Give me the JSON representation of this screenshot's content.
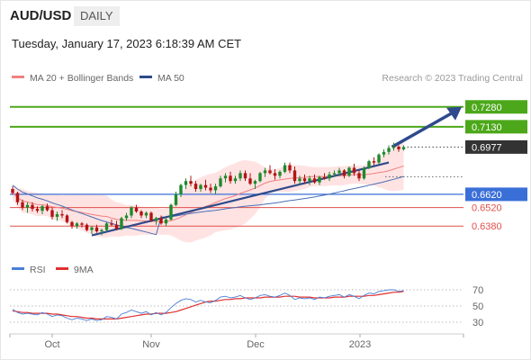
{
  "header": {
    "symbol": "AUD/USD",
    "timeframe": "DAILY",
    "timestamp": "Tuesday, January 17, 2023 6:18:39 AM CET"
  },
  "legend": {
    "ma20_bb": "MA 20 + Bollinger Bands",
    "ma50": "MA 50",
    "credit": "Research © 2023 Trading Central",
    "rsi": "RSI",
    "ma9": "9MA"
  },
  "colors": {
    "candle_up": "#1e8a2c",
    "candle_down": "#b01414",
    "bollinger_fill": "#ffd9d9",
    "ma20": "#f08080",
    "ma50": "#4a6fb5",
    "trendline": "#2e4a8c",
    "resistance": "#4ca81a",
    "support": "#e0504a",
    "pivot": "#3a6fd8",
    "last_price": "#333333",
    "rsi": "#4a7fd6",
    "rsi_ma": "#e03030"
  },
  "chart_data": [
    {
      "type": "candlestick",
      "title": "AUD/USD",
      "x_ticks": [
        "Oct",
        "Nov",
        "Dec",
        "2023"
      ],
      "ylim": [
        0.6215,
        0.736
      ],
      "levels": [
        {
          "value": 0.728,
          "label": "0.7280",
          "kind": "resistance"
        },
        {
          "value": 0.713,
          "label": "0.7130",
          "kind": "resistance"
        },
        {
          "value": 0.6977,
          "label": "0.6977",
          "kind": "last"
        },
        {
          "value": 0.662,
          "label": "0.6620",
          "kind": "pivot"
        },
        {
          "value": 0.652,
          "label": "0.6520",
          "kind": "support"
        },
        {
          "value": 0.638,
          "label": "0.6380",
          "kind": "support"
        }
      ],
      "candles_ohlc": [
        [
          0.666,
          0.668,
          0.662,
          0.663
        ],
        [
          0.663,
          0.664,
          0.654,
          0.656
        ],
        [
          0.656,
          0.658,
          0.65,
          0.652
        ],
        [
          0.652,
          0.656,
          0.648,
          0.654
        ],
        [
          0.654,
          0.656,
          0.649,
          0.651
        ],
        [
          0.651,
          0.653,
          0.648,
          0.6495
        ],
        [
          0.6495,
          0.654,
          0.647,
          0.653
        ],
        [
          0.653,
          0.655,
          0.649,
          0.65
        ],
        [
          0.65,
          0.652,
          0.643,
          0.645
        ],
        [
          0.645,
          0.649,
          0.642,
          0.647
        ],
        [
          0.647,
          0.65,
          0.644,
          0.646
        ],
        [
          0.646,
          0.647,
          0.64,
          0.641
        ],
        [
          0.641,
          0.642,
          0.636,
          0.638
        ],
        [
          0.638,
          0.641,
          0.636,
          0.64
        ],
        [
          0.64,
          0.641,
          0.637,
          0.639
        ],
        [
          0.639,
          0.64,
          0.634,
          0.635
        ],
        [
          0.635,
          0.638,
          0.632,
          0.637
        ],
        [
          0.637,
          0.639,
          0.633,
          0.634
        ],
        [
          0.634,
          0.636,
          0.631,
          0.635
        ],
        [
          0.635,
          0.641,
          0.634,
          0.64
        ],
        [
          0.64,
          0.643,
          0.638,
          0.639
        ],
        [
          0.639,
          0.642,
          0.635,
          0.636
        ],
        [
          0.636,
          0.645,
          0.635,
          0.644
        ],
        [
          0.644,
          0.648,
          0.642,
          0.646
        ],
        [
          0.646,
          0.653,
          0.644,
          0.652
        ],
        [
          0.652,
          0.654,
          0.648,
          0.649
        ],
        [
          0.649,
          0.65,
          0.644,
          0.646
        ],
        [
          0.646,
          0.649,
          0.644,
          0.648
        ],
        [
          0.648,
          0.649,
          0.641,
          0.642
        ],
        [
          0.642,
          0.645,
          0.639,
          0.644
        ],
        [
          0.644,
          0.646,
          0.639,
          0.64
        ],
        [
          0.64,
          0.644,
          0.638,
          0.643
        ],
        [
          0.643,
          0.655,
          0.642,
          0.654
        ],
        [
          0.654,
          0.664,
          0.653,
          0.662
        ],
        [
          0.662,
          0.67,
          0.66,
          0.669
        ],
        [
          0.669,
          0.674,
          0.666,
          0.672
        ],
        [
          0.672,
          0.676,
          0.668,
          0.67
        ],
        [
          0.67,
          0.672,
          0.664,
          0.666
        ],
        [
          0.666,
          0.67,
          0.664,
          0.669
        ],
        [
          0.669,
          0.673,
          0.665,
          0.667
        ],
        [
          0.667,
          0.67,
          0.663,
          0.665
        ],
        [
          0.665,
          0.67,
          0.662,
          0.668
        ],
        [
          0.668,
          0.676,
          0.667,
          0.674
        ],
        [
          0.674,
          0.678,
          0.671,
          0.676
        ],
        [
          0.676,
          0.679,
          0.67,
          0.672
        ],
        [
          0.672,
          0.676,
          0.67,
          0.674
        ],
        [
          0.674,
          0.68,
          0.672,
          0.678
        ],
        [
          0.678,
          0.68,
          0.672,
          0.674
        ],
        [
          0.674,
          0.678,
          0.669,
          0.67
        ],
        [
          0.67,
          0.673,
          0.666,
          0.672
        ],
        [
          0.672,
          0.679,
          0.671,
          0.678
        ],
        [
          0.678,
          0.682,
          0.675,
          0.68
        ],
        [
          0.68,
          0.684,
          0.677,
          0.678
        ],
        [
          0.678,
          0.681,
          0.673,
          0.676
        ],
        [
          0.676,
          0.68,
          0.674,
          0.679
        ],
        [
          0.679,
          0.686,
          0.678,
          0.684
        ],
        [
          0.684,
          0.686,
          0.678,
          0.68
        ],
        [
          0.68,
          0.683,
          0.67,
          0.672
        ],
        [
          0.672,
          0.676,
          0.669,
          0.674
        ],
        [
          0.674,
          0.677,
          0.67,
          0.672
        ],
        [
          0.672,
          0.676,
          0.669,
          0.674
        ],
        [
          0.674,
          0.677,
          0.67,
          0.671
        ],
        [
          0.671,
          0.676,
          0.669,
          0.675
        ],
        [
          0.675,
          0.678,
          0.673,
          0.674
        ],
        [
          0.674,
          0.679,
          0.672,
          0.677
        ],
        [
          0.677,
          0.68,
          0.675,
          0.678
        ],
        [
          0.678,
          0.682,
          0.676,
          0.68
        ],
        [
          0.68,
          0.681,
          0.674,
          0.676
        ],
        [
          0.676,
          0.683,
          0.675,
          0.682
        ],
        [
          0.682,
          0.685,
          0.676,
          0.678
        ],
        [
          0.678,
          0.68,
          0.672,
          0.674
        ],
        [
          0.674,
          0.683,
          0.673,
          0.682
        ],
        [
          0.682,
          0.688,
          0.681,
          0.687
        ],
        [
          0.687,
          0.69,
          0.684,
          0.686
        ],
        [
          0.686,
          0.693,
          0.685,
          0.692
        ],
        [
          0.692,
          0.696,
          0.69,
          0.694
        ],
        [
          0.694,
          0.699,
          0.692,
          0.697
        ],
        [
          0.697,
          0.701,
          0.695,
          0.698
        ],
        [
          0.698,
          0.699,
          0.694,
          0.696
        ],
        [
          0.696,
          0.699,
          0.695,
          0.6977
        ]
      ],
      "trendline": [
        [
          16,
          0.631
        ],
        [
          76,
          0.686
        ]
      ],
      "forecast_arrow": [
        [
          77,
          0.6977
        ],
        [
          84,
          0.728
        ]
      ]
    },
    {
      "type": "line",
      "title": "RSI",
      "y_ticks": [
        70,
        50,
        30
      ],
      "ylim": [
        20,
        80
      ],
      "series": [
        {
          "name": "RSI",
          "values": [
            46,
            42,
            40,
            41,
            40,
            39,
            42,
            40,
            37,
            39,
            38,
            35,
            33,
            35,
            34,
            32,
            34,
            32,
            33,
            37,
            36,
            34,
            40,
            42,
            45,
            43,
            41,
            43,
            39,
            42,
            39,
            42,
            48,
            53,
            57,
            59,
            58,
            55,
            57,
            55,
            54,
            57,
            61,
            62,
            60,
            61,
            63,
            60,
            58,
            60,
            63,
            64,
            62,
            61,
            63,
            66,
            63,
            58,
            60,
            59,
            60,
            58,
            61,
            60,
            62,
            63,
            64,
            61,
            64,
            62,
            59,
            63,
            66,
            65,
            68,
            69,
            70,
            70,
            68,
            69
          ]
        },
        {
          "name": "9MA",
          "values": [
            44,
            43,
            42,
            42,
            41,
            41,
            41,
            41,
            40,
            40,
            39,
            38,
            37,
            37,
            36,
            35,
            35,
            34,
            34,
            34,
            34,
            34,
            35,
            36,
            37,
            38,
            39,
            40,
            40,
            41,
            41,
            41,
            42,
            43,
            45,
            47,
            49,
            51,
            53,
            55,
            56,
            56,
            57,
            58,
            58,
            59,
            59,
            60,
            60,
            60,
            60,
            61,
            61,
            61,
            61,
            62,
            62,
            62,
            61,
            61,
            61,
            60,
            60,
            60,
            60,
            61,
            61,
            61,
            62,
            62,
            62,
            62,
            63,
            63,
            64,
            65,
            66,
            67,
            67,
            68
          ]
        }
      ]
    }
  ]
}
